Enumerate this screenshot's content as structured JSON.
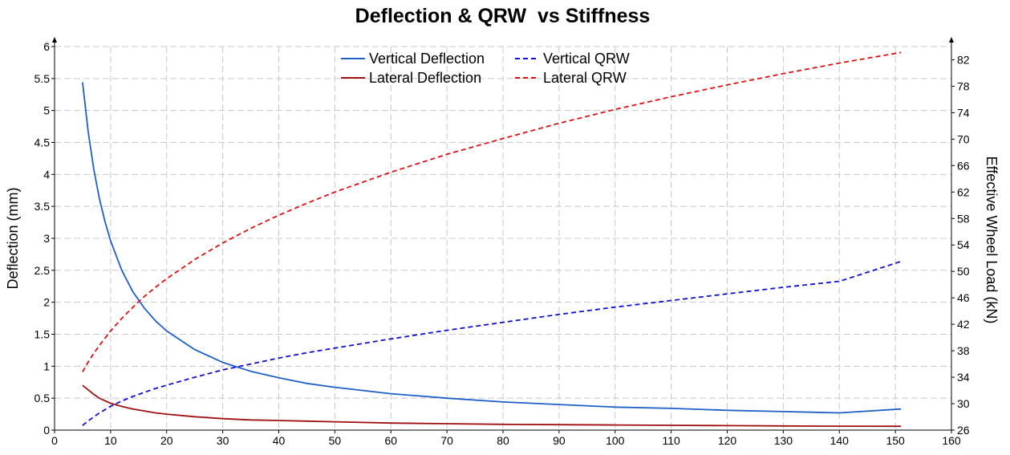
{
  "chart_data": {
    "type": "line",
    "title": "Deflection & QRW  vs Stiffness",
    "xlabel": "",
    "ylabel": "Deflection (mm)",
    "y2label": "Effective Wheel  Load (kN)",
    "xlim": [
      0,
      160
    ],
    "ylim": [
      0,
      6
    ],
    "y2lim": [
      26,
      84
    ],
    "xticks": [
      0,
      10,
      20,
      30,
      40,
      50,
      60,
      70,
      80,
      90,
      100,
      110,
      120,
      130,
      140,
      150,
      160
    ],
    "yticks": [
      "0",
      "0.5",
      "1",
      "1.5",
      "2",
      "2.5",
      "3",
      "3.5",
      "4",
      "4.5",
      "5",
      "5.5",
      "6"
    ],
    "y2ticks": [
      26,
      30,
      34,
      38,
      42,
      46,
      50,
      54,
      58,
      62,
      66,
      70,
      74,
      78,
      82
    ],
    "grid": true,
    "legend_position": "top-center",
    "x": [
      5,
      6,
      7,
      8,
      9,
      10,
      12,
      14,
      16,
      18,
      20,
      25,
      30,
      35,
      40,
      45,
      50,
      60,
      70,
      80,
      90,
      100,
      110,
      120,
      130,
      140,
      151
    ],
    "series": [
      {
        "name": "Vertical Deflection",
        "axis": "left",
        "color": "#1f5fc8",
        "dash": "solid",
        "values": [
          5.44,
          4.67,
          4.08,
          3.62,
          3.26,
          2.96,
          2.5,
          2.16,
          1.91,
          1.71,
          1.55,
          1.26,
          1.06,
          0.92,
          0.82,
          0.73,
          0.67,
          0.57,
          0.5,
          0.44,
          0.4,
          0.36,
          0.34,
          0.31,
          0.29,
          0.27,
          0.33
        ]
      },
      {
        "name": "Lateral Deflection",
        "axis": "left",
        "color": "#a01010",
        "dash": "solid",
        "values": [
          0.7,
          0.63,
          0.56,
          0.5,
          0.46,
          0.42,
          0.37,
          0.33,
          0.3,
          0.27,
          0.25,
          0.21,
          0.18,
          0.16,
          0.15,
          0.14,
          0.13,
          0.11,
          0.1,
          0.09,
          0.085,
          0.08,
          0.075,
          0.07,
          0.065,
          0.062,
          0.06
        ]
      },
      {
        "name": "Vertical QRW",
        "axis": "right",
        "color": "#1010d0",
        "dash": "dashed",
        "values": [
          26.7,
          27.4,
          28.0,
          28.6,
          29.1,
          29.6,
          30.4,
          31.1,
          31.7,
          32.3,
          32.8,
          34.0,
          35.1,
          36.0,
          36.9,
          37.7,
          38.4,
          39.8,
          41.1,
          42.3,
          43.5,
          44.6,
          45.6,
          46.6,
          47.6,
          48.5,
          51.5
        ]
      },
      {
        "name": "Lateral QRW",
        "axis": "right",
        "color": "#e01010",
        "dash": "dashed",
        "values": [
          34.8,
          36.3,
          37.6,
          38.8,
          39.9,
          41.0,
          42.9,
          44.6,
          46.2,
          47.6,
          48.9,
          51.8,
          54.3,
          56.5,
          58.5,
          60.3,
          62.0,
          65.0,
          67.7,
          70.1,
          72.4,
          74.5,
          76.4,
          78.2,
          79.9,
          81.5,
          83.1
        ]
      }
    ]
  }
}
